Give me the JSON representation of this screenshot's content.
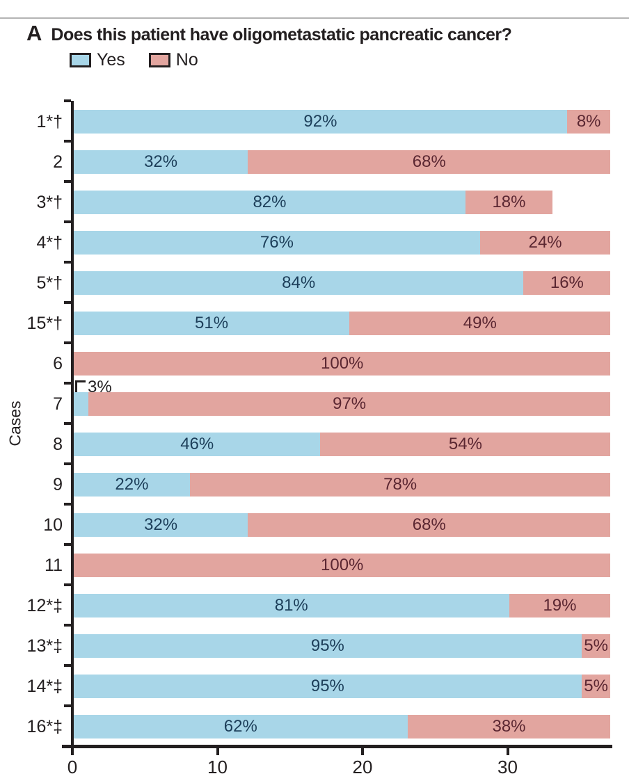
{
  "panel_label": "A",
  "title": "Does this patient have oligometastatic pancreatic cancer?",
  "ylabel": "Cases",
  "legend": {
    "items": [
      {
        "label": "Yes",
        "fill": "#a8d6e8",
        "border": "#231f20"
      },
      {
        "label": "No",
        "fill": "#e2a59f",
        "border": "#231f20"
      }
    ]
  },
  "colors": {
    "yes_fill": "#a8d6e8",
    "no_fill": "#e2a59f",
    "yes_text": "#1c3e59",
    "no_text": "#5a2631",
    "axis": "#231f20"
  },
  "chart_data": {
    "type": "bar",
    "orientation": "horizontal",
    "stacked": true,
    "title": "Does this patient have oligometastatic pancreatic cancer?",
    "xlabel": "",
    "ylabel": "Cases",
    "xlim": [
      0,
      37.1
    ],
    "x_ticks": [
      0,
      10,
      20,
      30
    ],
    "legend_entries": [
      "Yes",
      "No"
    ],
    "legend_position": "top-left",
    "grid": false,
    "categories": [
      "1*†",
      "2",
      "3*†",
      "4*†",
      "5*†",
      "15*†",
      "6",
      "7",
      "8",
      "9",
      "10",
      "11",
      "12*‡",
      "13*‡",
      "14*‡",
      "16*‡"
    ],
    "rows": [
      {
        "case": "1*†",
        "yes_n": 34,
        "no_n": 3,
        "yes_label": "92%",
        "no_label": "8%",
        "callout": false
      },
      {
        "case": "2",
        "yes_n": 12,
        "no_n": 25,
        "yes_label": "32%",
        "no_label": "68%",
        "callout": false
      },
      {
        "case": "3*†",
        "yes_n": 27,
        "no_n": 6,
        "yes_label": "82%",
        "no_label": "18%",
        "callout": false
      },
      {
        "case": "4*†",
        "yes_n": 28,
        "no_n": 9,
        "yes_label": "76%",
        "no_label": "24%",
        "callout": false
      },
      {
        "case": "5*†",
        "yes_n": 31,
        "no_n": 6,
        "yes_label": "84%",
        "no_label": "16%",
        "callout": false
      },
      {
        "case": "15*†",
        "yes_n": 19,
        "no_n": 18,
        "yes_label": "51%",
        "no_label": "49%",
        "callout": false
      },
      {
        "case": "6",
        "yes_n": 0,
        "no_n": 37,
        "yes_label": "",
        "no_label": "100%",
        "callout": false
      },
      {
        "case": "7",
        "yes_n": 1,
        "no_n": 36,
        "yes_label": "3%",
        "no_label": "97%",
        "callout": true
      },
      {
        "case": "8",
        "yes_n": 17,
        "no_n": 20,
        "yes_label": "46%",
        "no_label": "54%",
        "callout": false
      },
      {
        "case": "9",
        "yes_n": 8,
        "no_n": 29,
        "yes_label": "22%",
        "no_label": "78%",
        "callout": false
      },
      {
        "case": "10",
        "yes_n": 12,
        "no_n": 25,
        "yes_label": "32%",
        "no_label": "68%",
        "callout": false
      },
      {
        "case": "11",
        "yes_n": 0,
        "no_n": 37,
        "yes_label": "",
        "no_label": "100%",
        "callout": false
      },
      {
        "case": "12*‡",
        "yes_n": 30,
        "no_n": 7,
        "yes_label": "81%",
        "no_label": "19%",
        "callout": false
      },
      {
        "case": "13*‡",
        "yes_n": 35,
        "no_n": 2,
        "yes_label": "95%",
        "no_label": "5%",
        "callout": false
      },
      {
        "case": "14*‡",
        "yes_n": 35,
        "no_n": 2,
        "yes_label": "95%",
        "no_label": "5%",
        "callout": false
      },
      {
        "case": "16*‡",
        "yes_n": 23,
        "no_n": 14,
        "yes_label": "62%",
        "no_label": "38%",
        "callout": false
      }
    ],
    "series": [
      {
        "name": "Yes",
        "color": "#a8d6e8",
        "counts": [
          34,
          12,
          27,
          28,
          31,
          19,
          0,
          1,
          17,
          8,
          12,
          0,
          30,
          35,
          35,
          23
        ]
      },
      {
        "name": "No",
        "color": "#e2a59f",
        "counts": [
          3,
          25,
          6,
          9,
          6,
          18,
          37,
          36,
          20,
          29,
          25,
          37,
          7,
          2,
          2,
          14
        ]
      }
    ]
  }
}
